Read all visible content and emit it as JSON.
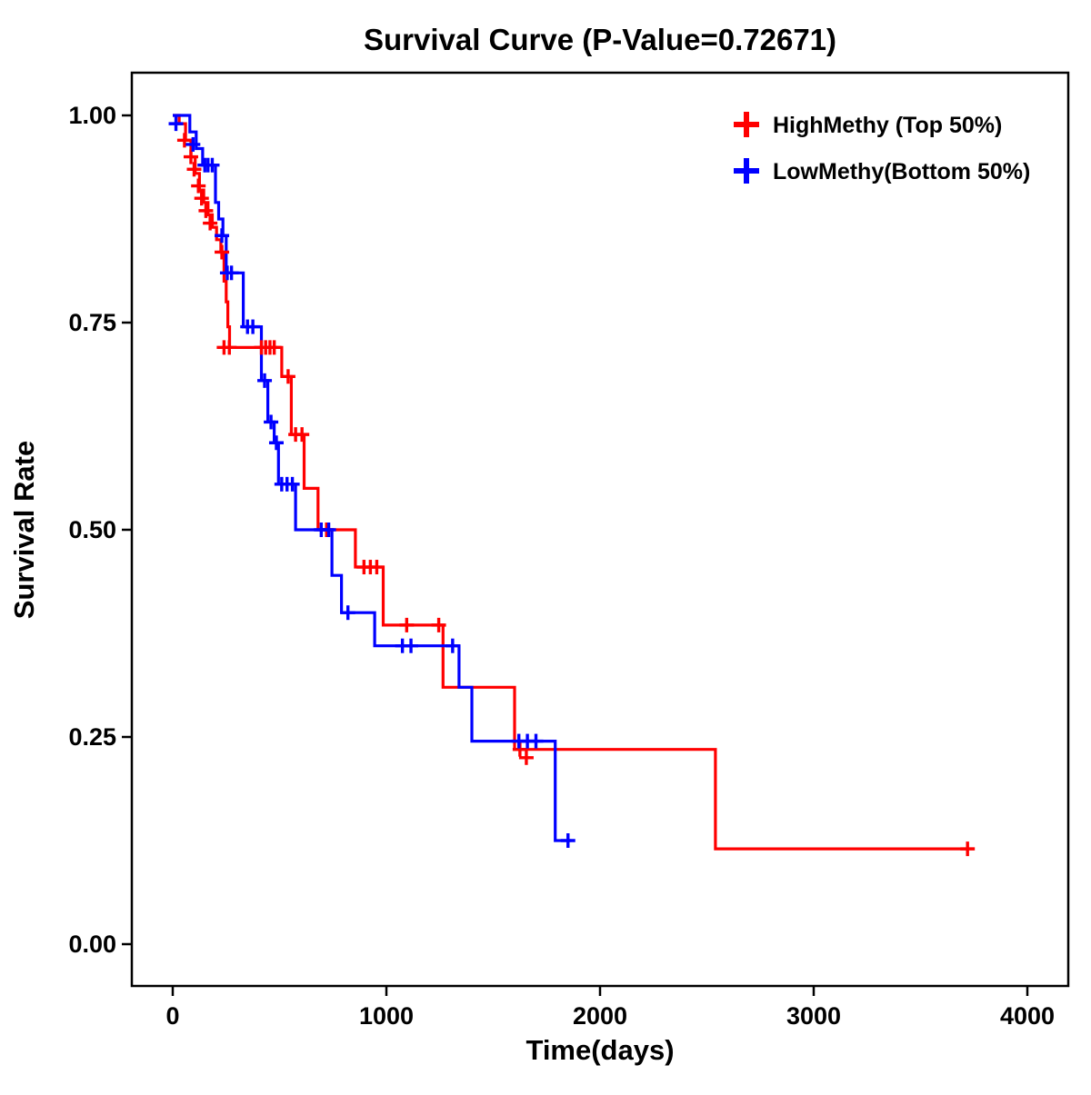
{
  "title": "Survival Curve (P-Value=0.72671)",
  "chart_data": {
    "type": "line",
    "subtype": "kaplan-meier-step-survival",
    "title": "Survival Curve (P-Value=0.72671)",
    "xlabel": "Time(days)",
    "ylabel": "Survival Rate",
    "p_value": "0.72671",
    "xlim": [
      0,
      4000
    ],
    "ylim": [
      0.0,
      1.0
    ],
    "x_ticks": [
      0,
      1000,
      2000,
      3000,
      4000
    ],
    "x_tick_labels": [
      "0",
      "1000",
      "2000",
      "3000",
      "4000"
    ],
    "y_ticks": [
      0.0,
      0.25,
      0.5,
      0.75,
      1.0
    ],
    "y_tick_labels": [
      "0.00",
      "0.25",
      "0.50",
      "0.75",
      "1.00"
    ],
    "grid": false,
    "legend_position": "top-right",
    "series": [
      {
        "name": "HighMethy (Top 50%)",
        "color": "#FF0000",
        "steps": [
          [
            0,
            1.0
          ],
          [
            30,
            0.99
          ],
          [
            60,
            0.97
          ],
          [
            85,
            0.95
          ],
          [
            105,
            0.93
          ],
          [
            125,
            0.91
          ],
          [
            145,
            0.895
          ],
          [
            165,
            0.88
          ],
          [
            185,
            0.865
          ],
          [
            205,
            0.85
          ],
          [
            225,
            0.835
          ],
          [
            240,
            0.8
          ],
          [
            250,
            0.775
          ],
          [
            258,
            0.745
          ],
          [
            266,
            0.72
          ],
          [
            510,
            0.685
          ],
          [
            555,
            0.615
          ],
          [
            615,
            0.55
          ],
          [
            680,
            0.5
          ],
          [
            855,
            0.455
          ],
          [
            985,
            0.385
          ],
          [
            1265,
            0.31
          ],
          [
            1600,
            0.235
          ],
          [
            2540,
            0.115
          ],
          [
            3725,
            0.115
          ]
        ],
        "censors": [
          [
            55,
            0.97
          ],
          [
            85,
            0.95
          ],
          [
            100,
            0.935
          ],
          [
            120,
            0.915
          ],
          [
            135,
            0.9
          ],
          [
            155,
            0.885
          ],
          [
            175,
            0.87
          ],
          [
            230,
            0.835
          ],
          [
            240,
            0.72
          ],
          [
            265,
            0.72
          ],
          [
            415,
            0.72
          ],
          [
            435,
            0.72
          ],
          [
            455,
            0.72
          ],
          [
            475,
            0.72
          ],
          [
            540,
            0.685
          ],
          [
            575,
            0.615
          ],
          [
            605,
            0.615
          ],
          [
            720,
            0.5
          ],
          [
            895,
            0.455
          ],
          [
            925,
            0.455
          ],
          [
            955,
            0.455
          ],
          [
            1095,
            0.385
          ],
          [
            1245,
            0.385
          ],
          [
            1625,
            0.235
          ],
          [
            1655,
            0.225
          ],
          [
            3720,
            0.115
          ]
        ]
      },
      {
        "name": "LowMethy(Bottom 50%)",
        "color": "#0000FF",
        "steps": [
          [
            0,
            1.0
          ],
          [
            80,
            0.98
          ],
          [
            110,
            0.96
          ],
          [
            140,
            0.94
          ],
          [
            200,
            0.895
          ],
          [
            215,
            0.875
          ],
          [
            235,
            0.855
          ],
          [
            250,
            0.81
          ],
          [
            330,
            0.745
          ],
          [
            415,
            0.68
          ],
          [
            445,
            0.63
          ],
          [
            475,
            0.605
          ],
          [
            495,
            0.555
          ],
          [
            575,
            0.5
          ],
          [
            745,
            0.445
          ],
          [
            790,
            0.4
          ],
          [
            945,
            0.36
          ],
          [
            1340,
            0.31
          ],
          [
            1400,
            0.245
          ],
          [
            1790,
            0.125
          ],
          [
            1865,
            0.125
          ]
        ],
        "censors": [
          [
            15,
            0.99
          ],
          [
            95,
            0.965
          ],
          [
            150,
            0.94
          ],
          [
            165,
            0.94
          ],
          [
            185,
            0.94
          ],
          [
            230,
            0.855
          ],
          [
            255,
            0.81
          ],
          [
            275,
            0.81
          ],
          [
            350,
            0.745
          ],
          [
            375,
            0.745
          ],
          [
            430,
            0.68
          ],
          [
            460,
            0.63
          ],
          [
            485,
            0.605
          ],
          [
            510,
            0.555
          ],
          [
            535,
            0.555
          ],
          [
            560,
            0.555
          ],
          [
            695,
            0.5
          ],
          [
            730,
            0.5
          ],
          [
            820,
            0.4
          ],
          [
            1075,
            0.36
          ],
          [
            1115,
            0.36
          ],
          [
            1310,
            0.36
          ],
          [
            1620,
            0.245
          ],
          [
            1660,
            0.245
          ],
          [
            1700,
            0.245
          ],
          [
            1850,
            0.125
          ]
        ]
      }
    ]
  }
}
